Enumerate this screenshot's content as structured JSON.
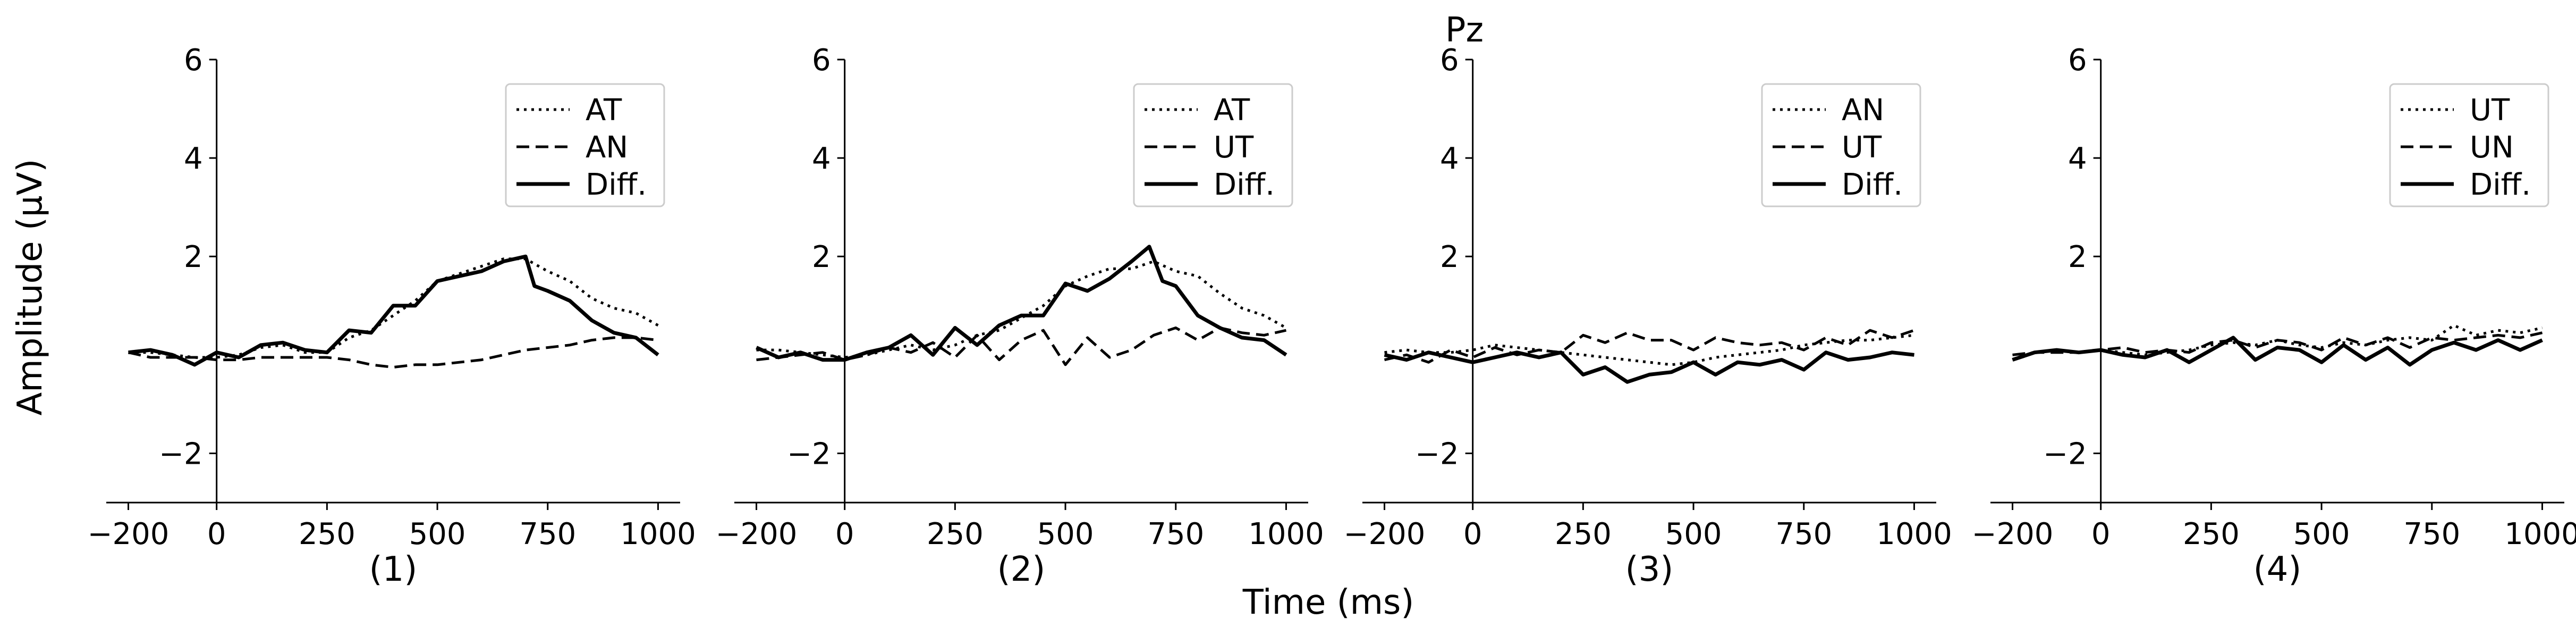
{
  "figure": {
    "suptitle": "Pz",
    "ylabel": "Amplitude (μV)",
    "xlabel": "Time (ms)"
  },
  "chart_data": [
    {
      "type": "line",
      "panel_label": "(1)",
      "xlim": [
        -250,
        1050
      ],
      "ylim": [
        -3,
        6
      ],
      "xticks": [
        -200,
        0,
        250,
        500,
        750,
        1000
      ],
      "yticks": [
        -2,
        2,
        4,
        6
      ],
      "legend_position": "top-right",
      "series": [
        {
          "name": "AT",
          "style": "dotted",
          "x": [
            -200,
            -150,
            -100,
            -50,
            0,
            50,
            100,
            150,
            200,
            250,
            300,
            350,
            400,
            450,
            500,
            550,
            600,
            650,
            700,
            750,
            800,
            850,
            900,
            950,
            1000
          ],
          "y": [
            0.05,
            0.05,
            0.0,
            -0.05,
            -0.05,
            0.0,
            0.15,
            0.2,
            0.05,
            0.05,
            0.35,
            0.5,
            0.8,
            1.1,
            1.5,
            1.65,
            1.8,
            1.95,
            1.95,
            1.7,
            1.5,
            1.15,
            0.95,
            0.85,
            0.6
          ]
        },
        {
          "name": "AN",
          "style": "dashed",
          "x": [
            -200,
            -150,
            -100,
            -50,
            0,
            50,
            100,
            150,
            200,
            250,
            300,
            350,
            400,
            450,
            500,
            550,
            600,
            650,
            700,
            750,
            800,
            850,
            900,
            950,
            1000
          ],
          "y": [
            0.05,
            -0.05,
            -0.05,
            -0.05,
            -0.1,
            -0.1,
            -0.05,
            -0.05,
            -0.05,
            -0.05,
            -0.1,
            -0.2,
            -0.25,
            -0.2,
            -0.2,
            -0.15,
            -0.1,
            0.0,
            0.1,
            0.15,
            0.2,
            0.3,
            0.35,
            0.35,
            0.3
          ]
        },
        {
          "name": "Diff.",
          "style": "solid",
          "x": [
            -200,
            -150,
            -100,
            -50,
            0,
            50,
            100,
            150,
            200,
            250,
            300,
            350,
            400,
            450,
            500,
            550,
            600,
            650,
            700,
            720,
            750,
            800,
            850,
            900,
            950,
            1000
          ],
          "y": [
            0.05,
            0.1,
            0.0,
            -0.2,
            0.05,
            -0.05,
            0.2,
            0.25,
            0.1,
            0.05,
            0.5,
            0.45,
            1.0,
            1.0,
            1.5,
            1.6,
            1.7,
            1.9,
            2.0,
            1.4,
            1.3,
            1.1,
            0.7,
            0.45,
            0.35,
            0.0
          ]
        }
      ]
    },
    {
      "type": "line",
      "panel_label": "(2)",
      "xlim": [
        -250,
        1050
      ],
      "ylim": [
        -3,
        6
      ],
      "xticks": [
        -200,
        0,
        250,
        500,
        750,
        1000
      ],
      "yticks": [
        -2,
        2,
        4,
        6
      ],
      "legend_position": "top-right",
      "series": [
        {
          "name": "AT",
          "style": "dotted",
          "x": [
            -200,
            -150,
            -100,
            -50,
            0,
            50,
            100,
            150,
            200,
            250,
            300,
            350,
            400,
            450,
            500,
            550,
            600,
            650,
            700,
            750,
            800,
            850,
            900,
            950,
            1000
          ],
          "y": [
            0.1,
            0.1,
            0.05,
            0.0,
            -0.05,
            0.0,
            0.1,
            0.2,
            0.1,
            0.2,
            0.4,
            0.5,
            0.75,
            1.0,
            1.4,
            1.6,
            1.75,
            1.75,
            1.9,
            1.7,
            1.6,
            1.25,
            0.95,
            0.8,
            0.55
          ]
        },
        {
          "name": "UT",
          "style": "dashed",
          "x": [
            -200,
            -150,
            -100,
            -50,
            0,
            50,
            100,
            150,
            200,
            250,
            300,
            350,
            400,
            450,
            500,
            550,
            600,
            650,
            700,
            750,
            800,
            850,
            900,
            950,
            1000
          ],
          "y": [
            -0.1,
            -0.05,
            0.0,
            0.05,
            -0.1,
            0.0,
            0.15,
            0.05,
            0.25,
            -0.05,
            0.4,
            -0.1,
            0.3,
            0.5,
            -0.2,
            0.35,
            -0.05,
            0.1,
            0.4,
            0.55,
            0.3,
            0.55,
            0.45,
            0.4,
            0.5
          ]
        },
        {
          "name": "Diff.",
          "style": "solid",
          "x": [
            -200,
            -150,
            -100,
            -50,
            0,
            50,
            100,
            150,
            200,
            250,
            300,
            350,
            400,
            450,
            500,
            550,
            600,
            650,
            690,
            720,
            750,
            800,
            850,
            900,
            950,
            1000
          ],
          "y": [
            0.15,
            -0.05,
            0.05,
            -0.1,
            -0.1,
            0.05,
            0.15,
            0.4,
            0.0,
            0.55,
            0.2,
            0.6,
            0.8,
            0.8,
            1.45,
            1.3,
            1.55,
            1.9,
            2.2,
            1.5,
            1.4,
            0.8,
            0.55,
            0.35,
            0.3,
            0.0
          ]
        }
      ]
    },
    {
      "type": "line",
      "panel_label": "(3)",
      "xlim": [
        -250,
        1050
      ],
      "ylim": [
        -3,
        6
      ],
      "xticks": [
        -200,
        0,
        250,
        500,
        750,
        1000
      ],
      "yticks": [
        -2,
        2,
        4,
        6
      ],
      "legend_position": "top-right",
      "series": [
        {
          "name": "AN",
          "style": "dotted",
          "x": [
            -200,
            -150,
            -100,
            -50,
            0,
            50,
            100,
            150,
            200,
            250,
            300,
            350,
            400,
            450,
            500,
            550,
            600,
            650,
            700,
            750,
            800,
            850,
            900,
            950,
            1000
          ],
          "y": [
            0.05,
            0.1,
            0.05,
            0.05,
            0.1,
            0.2,
            0.15,
            0.1,
            0.05,
            0.0,
            -0.05,
            -0.1,
            -0.15,
            -0.2,
            -0.15,
            -0.05,
            0.0,
            0.05,
            0.1,
            0.2,
            0.25,
            0.3,
            0.3,
            0.35,
            0.4
          ]
        },
        {
          "name": "UT",
          "style": "dashed",
          "x": [
            -200,
            -150,
            -100,
            -50,
            0,
            50,
            100,
            150,
            200,
            250,
            300,
            350,
            400,
            450,
            500,
            550,
            600,
            650,
            700,
            750,
            800,
            850,
            900,
            950,
            1000
          ],
          "y": [
            -0.1,
            0.0,
            -0.15,
            0.1,
            -0.05,
            0.15,
            0.0,
            0.1,
            0.05,
            0.4,
            0.25,
            0.45,
            0.3,
            0.3,
            0.1,
            0.35,
            0.25,
            0.2,
            0.25,
            0.1,
            0.35,
            0.2,
            0.5,
            0.35,
            0.5
          ]
        },
        {
          "name": "Diff.",
          "style": "solid",
          "x": [
            -200,
            -150,
            -100,
            -50,
            0,
            50,
            100,
            150,
            200,
            250,
            300,
            350,
            400,
            450,
            500,
            550,
            600,
            650,
            700,
            750,
            800,
            850,
            900,
            950,
            1000
          ],
          "y": [
            0.0,
            -0.1,
            0.05,
            -0.05,
            -0.15,
            -0.05,
            0.05,
            -0.05,
            0.05,
            -0.4,
            -0.25,
            -0.55,
            -0.4,
            -0.35,
            -0.15,
            -0.4,
            -0.15,
            -0.2,
            -0.1,
            -0.3,
            0.05,
            -0.1,
            -0.05,
            0.05,
            0.0
          ]
        }
      ]
    },
    {
      "type": "line",
      "panel_label": "(4)",
      "xlim": [
        -250,
        1050
      ],
      "ylim": [
        -3,
        6
      ],
      "xticks": [
        -200,
        0,
        250,
        500,
        750,
        1000
      ],
      "yticks": [
        -2,
        2,
        4,
        6
      ],
      "legend_position": "top-right",
      "series": [
        {
          "name": "UT",
          "style": "dotted",
          "x": [
            -200,
            -150,
            -100,
            -50,
            0,
            50,
            100,
            150,
            200,
            250,
            300,
            350,
            400,
            450,
            500,
            550,
            600,
            650,
            700,
            750,
            800,
            850,
            900,
            950,
            1000
          ],
          "y": [
            -0.1,
            0.05,
            0.1,
            0.05,
            0.1,
            0.05,
            0.0,
            0.05,
            0.1,
            0.2,
            0.25,
            0.2,
            0.3,
            0.2,
            0.15,
            0.25,
            0.2,
            0.3,
            0.35,
            0.3,
            0.6,
            0.4,
            0.5,
            0.45,
            0.55
          ]
        },
        {
          "name": "UN",
          "style": "dashed",
          "x": [
            -200,
            -150,
            -100,
            -50,
            0,
            50,
            100,
            150,
            200,
            250,
            300,
            350,
            400,
            450,
            500,
            550,
            600,
            650,
            700,
            750,
            800,
            850,
            900,
            950,
            1000
          ],
          "y": [
            0.0,
            0.05,
            0.05,
            0.05,
            0.1,
            0.15,
            0.05,
            0.1,
            0.05,
            0.25,
            0.3,
            0.15,
            0.3,
            0.25,
            0.1,
            0.35,
            0.2,
            0.35,
            0.15,
            0.35,
            0.3,
            0.35,
            0.4,
            0.35,
            0.45
          ]
        },
        {
          "name": "Diff.",
          "style": "solid",
          "x": [
            -200,
            -150,
            -100,
            -50,
            0,
            50,
            100,
            150,
            200,
            250,
            300,
            350,
            400,
            450,
            500,
            550,
            600,
            650,
            700,
            750,
            800,
            850,
            900,
            950,
            1000
          ],
          "y": [
            -0.1,
            0.05,
            0.1,
            0.05,
            0.1,
            0.0,
            -0.05,
            0.1,
            -0.15,
            0.1,
            0.35,
            -0.1,
            0.15,
            0.1,
            -0.15,
            0.2,
            -0.1,
            0.15,
            -0.2,
            0.1,
            0.25,
            0.1,
            0.3,
            0.1,
            0.3
          ]
        }
      ]
    }
  ]
}
